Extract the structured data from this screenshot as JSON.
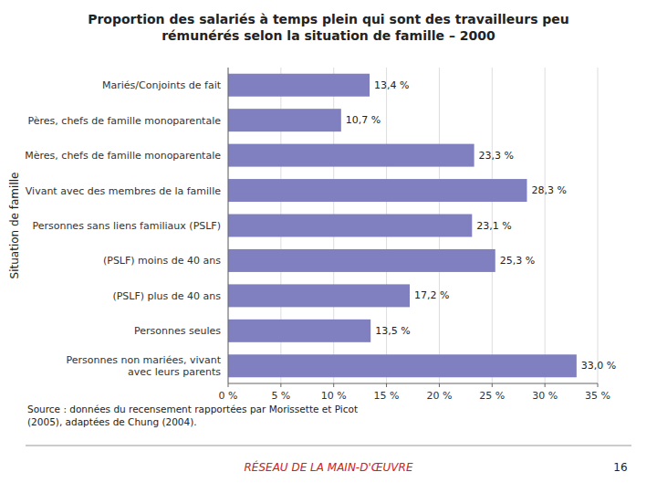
{
  "chart_data": {
    "type": "bar",
    "orientation": "horizontal",
    "title": "Proportion des salariés à temps plein qui sont des travailleurs peu\nrémunérés selon la situation de famille – 2000",
    "ylabel": "Situation de famille",
    "categories": [
      "Mariés/Conjoints de fait",
      "Pères, chefs de famille monoparentale",
      "Mères, chefs de famille monoparentale",
      "Vivant avec des membres de la famille",
      "Personnes sans liens familiaux (PSLF)",
      "(PSLF) moins de 40 ans",
      "(PSLF) plus de 40 ans",
      "Personnes seules",
      "Personnes non mariées, vivant\navec leurs parents"
    ],
    "values": [
      13.4,
      10.7,
      23.3,
      28.3,
      23.1,
      25.3,
      17.2,
      13.5,
      33.0
    ],
    "value_labels": [
      "13,4 %",
      "10,7 %",
      "23,3 %",
      "28,3 %",
      "23,1 %",
      "25,3 %",
      "17,2 %",
      "13,5 %",
      "33,0 %"
    ],
    "data_labels": true,
    "color": "#8080c0",
    "xlim": [
      0,
      35
    ],
    "xticks": [
      {
        "value": 0,
        "label": "0 %"
      },
      {
        "value": 5,
        "label": "5 %"
      },
      {
        "value": 10,
        "label": "10 %"
      },
      {
        "value": 15,
        "label": "15 %"
      },
      {
        "value": 20,
        "label": "20 %"
      },
      {
        "value": 25,
        "label": "25 %"
      },
      {
        "value": 30,
        "label": "30 %"
      },
      {
        "value": 35,
        "label": "35 %"
      }
    ],
    "grid": true,
    "annotations": [
      "Source : données du recensement rapportées par Morissette et Picot\n(2005), adaptées de Chung (2004).",
      "RÉSEAU DE LA MAIN-D'ŒUVRE",
      "16"
    ]
  }
}
